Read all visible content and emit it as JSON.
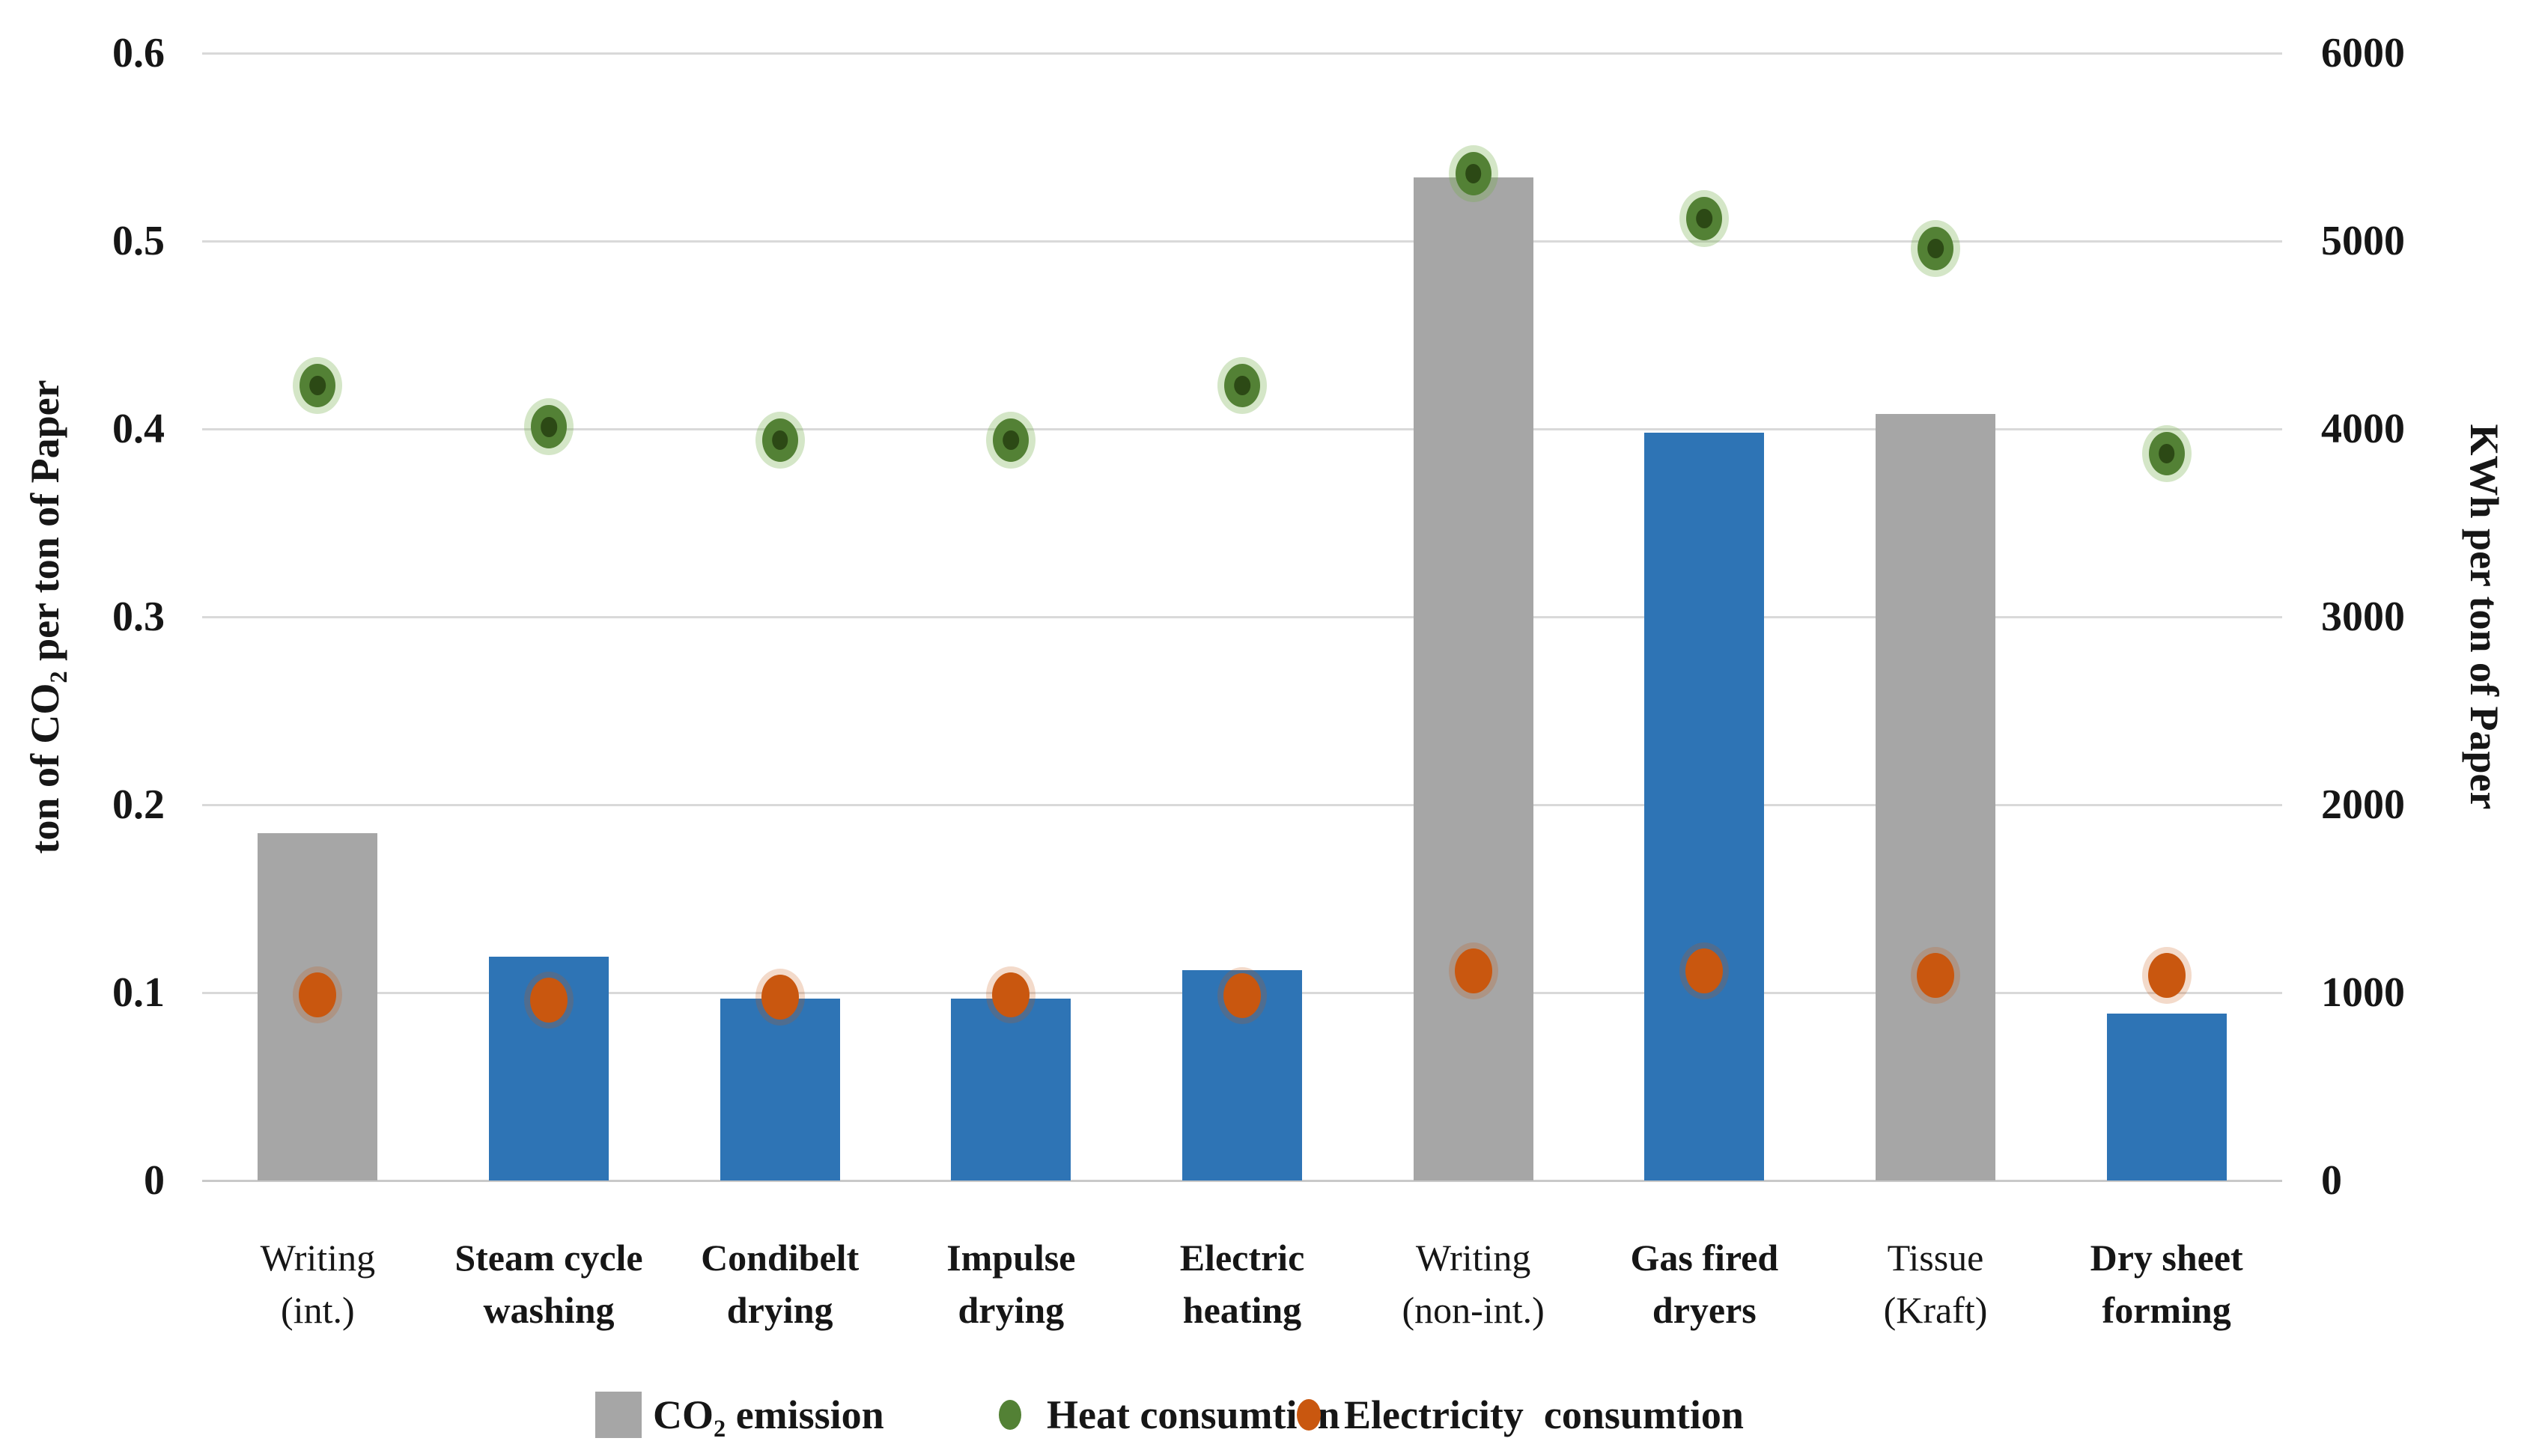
{
  "chart_data": {
    "type": "bar",
    "subtype": "combo-bar-scatter-dual-axis",
    "categories": [
      "Writing (int.)",
      "Steam cycle washing",
      "Condibelt drying",
      "Impulse drying",
      "Electric heating",
      "Writing (non-int.)",
      "Gas fired dryers",
      "Tissue (Kraft)",
      "Dry sheet forming"
    ],
    "category_lines": [
      [
        "Writing",
        "(int.)"
      ],
      [
        "Steam cycle",
        "washing"
      ],
      [
        "Condibelt",
        "drying"
      ],
      [
        "Impulse",
        "drying"
      ],
      [
        "Electric",
        "heating"
      ],
      [
        "Writing",
        "(non-int.)"
      ],
      [
        "Gas fired",
        "dryers"
      ],
      [
        "Tissue",
        "(Kraft)"
      ],
      [
        "Dry sheet",
        "forming"
      ]
    ],
    "category_bold": [
      false,
      true,
      true,
      true,
      true,
      false,
      true,
      false,
      true
    ],
    "series": [
      {
        "name": "CO₂ emission",
        "type": "bar",
        "axis": "left",
        "values": [
          0.185,
          0.119,
          0.097,
          0.097,
          0.112,
          0.534,
          0.398,
          0.408,
          0.089
        ],
        "bar_color_keys": [
          "gray",
          "blue",
          "blue",
          "blue",
          "blue",
          "gray",
          "blue",
          "gray",
          "blue"
        ]
      },
      {
        "name": "Heat consumtion",
        "type": "scatter",
        "axis": "right",
        "values": [
          4230,
          4010,
          3940,
          3940,
          4230,
          5360,
          5120,
          4960,
          3870
        ]
      },
      {
        "name": "Electricity  consumtion",
        "type": "scatter",
        "axis": "right",
        "values": [
          990,
          960,
          975,
          990,
          985,
          1115,
          1115,
          1090,
          1090
        ]
      }
    ],
    "left_axis": {
      "title": "ton of CO₂ per ton of Paper",
      "min": 0,
      "max": 0.6,
      "ticks": [
        "0",
        "0.1",
        "0.2",
        "0.3",
        "0.4",
        "0.5",
        "0.6"
      ]
    },
    "right_axis": {
      "title": "KWh per ton of Paper",
      "min": 0,
      "max": 6000,
      "ticks": [
        "0",
        "1000",
        "2000",
        "3000",
        "4000",
        "5000",
        "6000"
      ]
    },
    "legend": [
      {
        "label": "CO₂ emission",
        "swatch": "gray-square"
      },
      {
        "label": "Heat consumtion",
        "swatch": "green-dot"
      },
      {
        "label": "Electricity  consumtion",
        "swatch": "orange-dot"
      }
    ],
    "colors": {
      "bar_gray": "#a6a6a6",
      "bar_blue": "#2e74b5",
      "heat_dot": "#538135",
      "heat_dot_core": "#26400f",
      "electricity_dot": "#c9570f",
      "gridline": "#d9d9d9",
      "text": "#161616"
    },
    "grid": "horizontal-only",
    "legend_position": "bottom"
  }
}
